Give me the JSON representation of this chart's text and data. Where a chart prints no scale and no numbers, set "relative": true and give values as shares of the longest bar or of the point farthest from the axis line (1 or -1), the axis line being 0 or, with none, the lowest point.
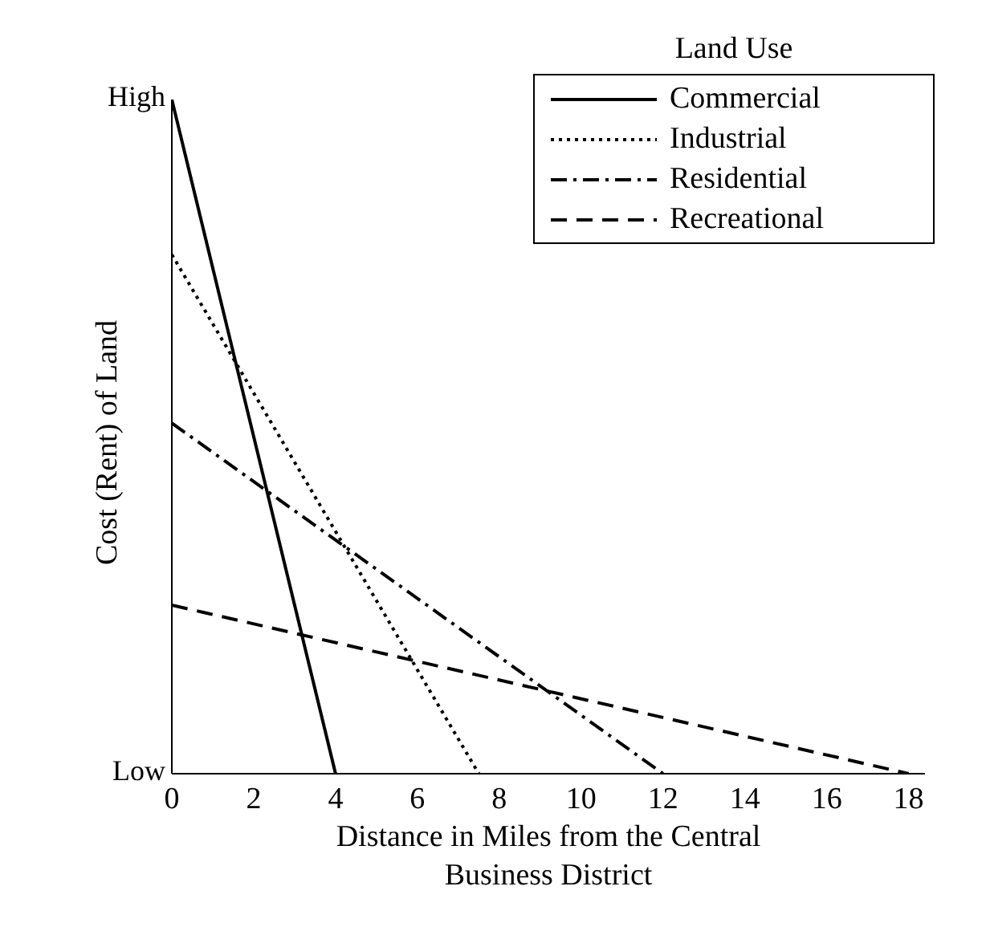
{
  "chart_data": {
    "type": "line",
    "relative": true,
    "xlabel": "Distance in Miles from the Central Business District",
    "ylabel": "Cost (Rent) of Land",
    "legend_title": "Land Use",
    "legend": "top right",
    "grid": false,
    "marker": "none",
    "xlim": [
      0,
      18.4
    ],
    "xticks": [
      0,
      2,
      4,
      6,
      8,
      10,
      12,
      14,
      16,
      18
    ],
    "annotations": [
      "High",
      "Low"
    ],
    "series": [
      {
        "name": "Commercial",
        "color": "#000000",
        "line_style": "solid",
        "x": [
          0,
          4
        ],
        "values": [
          1,
          0
        ]
      },
      {
        "name": "Industrial",
        "color": "#000000",
        "line_style": "dotted",
        "x": [
          0,
          7.5
        ],
        "values": [
          0.77,
          0
        ]
      },
      {
        "name": "Residential",
        "color": "#000000",
        "line_style": "dashdot",
        "x": [
          0,
          12
        ],
        "values": [
          0.52,
          0
        ]
      },
      {
        "name": "Recreational",
        "color": "#000000",
        "line_style": "dashed",
        "x": [
          0,
          18
        ],
        "values": [
          0.25,
          0
        ]
      }
    ]
  }
}
